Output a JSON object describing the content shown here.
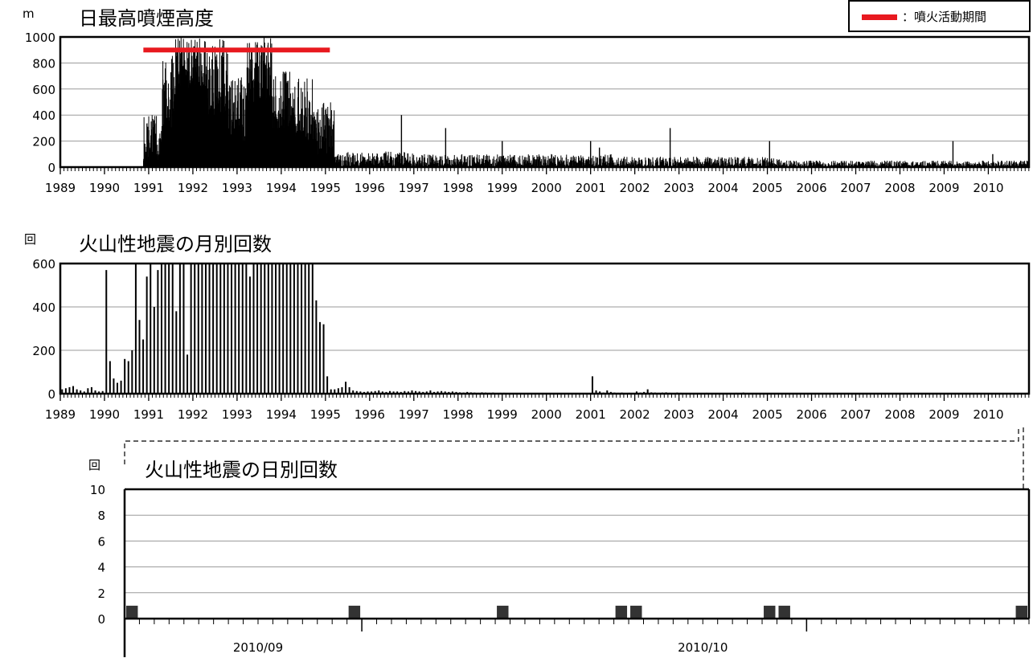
{
  "chart_data": [
    {
      "id": "plume",
      "type": "bar",
      "title": "日最高噴煙高度",
      "ylabel": "m",
      "ylim": [
        0,
        1000
      ],
      "yticks": [
        0,
        200,
        400,
        600,
        800,
        1000
      ],
      "xlim": [
        1989.0,
        2010.92
      ],
      "xticks": [
        "1989",
        "1990",
        "1991",
        "1992",
        "1993",
        "1994",
        "1995",
        "1996",
        "1997",
        "1998",
        "1999",
        "2000",
        "2001",
        "2002",
        "2003",
        "2004",
        "2005",
        "2006",
        "2007",
        "2008",
        "2009",
        "2010"
      ],
      "grid": true,
      "legend": {
        "placement": "top-right",
        "label": "：噴火活動期間",
        "color": "#e8191f"
      },
      "eruption_period": {
        "start": 1990.88,
        "end": 1995.1,
        "level": 900
      },
      "bar_color": "#000000",
      "segments": [
        {
          "start": 1990.88,
          "end": 1991.3,
          "min": 50,
          "max": 400
        },
        {
          "start": 1991.3,
          "end": 1991.6,
          "min": 300,
          "max": 900
        },
        {
          "start": 1991.6,
          "end": 1992.3,
          "min": 600,
          "max": 1000
        },
        {
          "start": 1992.3,
          "end": 1992.8,
          "min": 400,
          "max": 1000
        },
        {
          "start": 1992.8,
          "end": 1993.2,
          "min": 200,
          "max": 700
        },
        {
          "start": 1993.2,
          "end": 1993.8,
          "min": 500,
          "max": 1000
        },
        {
          "start": 1993.8,
          "end": 1994.3,
          "min": 300,
          "max": 800
        },
        {
          "start": 1994.3,
          "end": 1994.8,
          "min": 200,
          "max": 700
        },
        {
          "start": 1994.8,
          "end": 1995.2,
          "min": 100,
          "max": 500
        },
        {
          "start": 1995.2,
          "end": 1997.0,
          "min": 0,
          "max": 120
        },
        {
          "start": 1997.0,
          "end": 2001.5,
          "min": 0,
          "max": 100
        },
        {
          "start": 2001.5,
          "end": 2005.3,
          "min": 0,
          "max": 80
        },
        {
          "start": 2005.3,
          "end": 2010.9,
          "min": 0,
          "max": 50
        }
      ],
      "spikes": [
        {
          "x": 1996.72,
          "y": 400
        },
        {
          "x": 1997.72,
          "y": 300
        },
        {
          "x": 1999.0,
          "y": 200
        },
        {
          "x": 2001.0,
          "y": 200
        },
        {
          "x": 2001.2,
          "y": 150
        },
        {
          "x": 2002.8,
          "y": 300
        },
        {
          "x": 2005.05,
          "y": 200
        },
        {
          "x": 2009.2,
          "y": 200
        },
        {
          "x": 2010.1,
          "y": 100
        }
      ]
    },
    {
      "id": "monthly",
      "type": "bar",
      "title": "火山性地震の月別回数",
      "ylabel": "回",
      "ylim": [
        0,
        600
      ],
      "yticks": [
        0,
        200,
        400,
        600
      ],
      "xlim": [
        1989.0,
        2010.92
      ],
      "xticks": [
        "1989",
        "1990",
        "1991",
        "1992",
        "1993",
        "1994",
        "1995",
        "1996",
        "1997",
        "1998",
        "1999",
        "2000",
        "2001",
        "2002",
        "2003",
        "2004",
        "2005",
        "2006",
        "2007",
        "2008",
        "2009",
        "2010"
      ],
      "grid": true,
      "bar_color": "#000000",
      "start_year": 1989,
      "values": [
        20,
        25,
        30,
        35,
        20,
        15,
        10,
        25,
        30,
        15,
        10,
        12,
        570,
        150,
        70,
        50,
        60,
        160,
        150,
        200,
        600,
        340,
        250,
        540,
        600,
        400,
        570,
        600,
        600,
        600,
        600,
        380,
        600,
        600,
        180,
        600,
        600,
        600,
        600,
        600,
        600,
        600,
        600,
        600,
        600,
        600,
        600,
        600,
        600,
        600,
        600,
        540,
        600,
        600,
        600,
        600,
        600,
        600,
        600,
        600,
        600,
        600,
        600,
        600,
        600,
        600,
        600,
        600,
        600,
        430,
        330,
        320,
        80,
        20,
        20,
        25,
        30,
        55,
        30,
        15,
        12,
        10,
        8,
        10,
        10,
        12,
        15,
        10,
        8,
        12,
        10,
        10,
        8,
        12,
        10,
        15,
        12,
        10,
        8,
        10,
        15,
        8,
        10,
        12,
        10,
        8,
        10,
        8,
        6,
        5,
        8,
        6,
        5,
        4,
        6,
        5,
        4,
        5,
        3,
        4,
        4,
        3,
        3,
        2,
        3,
        2,
        3,
        2,
        3,
        2,
        2,
        3,
        2,
        2,
        3,
        2,
        2,
        3,
        2,
        2,
        2,
        3,
        2,
        2,
        80,
        15,
        10,
        5,
        15,
        8,
        5,
        4,
        5,
        3,
        4,
        3,
        10,
        5,
        8,
        20,
        6,
        5,
        4,
        5,
        6,
        4,
        3,
        5,
        4,
        3,
        3,
        2,
        3,
        2,
        3,
        4,
        3,
        2,
        3,
        2,
        3,
        2,
        3,
        4,
        3,
        5,
        3,
        2,
        3,
        2,
        2,
        3,
        2,
        2,
        3,
        2,
        2,
        2,
        3,
        2,
        2,
        2,
        2,
        2,
        2,
        2,
        2,
        3,
        2,
        2,
        2,
        2,
        2,
        2,
        2,
        2,
        2,
        2,
        2,
        2,
        3,
        2,
        2,
        2,
        2,
        2,
        2,
        2,
        2,
        2,
        2,
        2,
        2,
        2,
        2,
        2,
        3,
        2,
        2,
        2,
        2,
        2,
        2,
        2,
        2,
        2,
        2,
        2,
        2,
        2,
        2,
        2,
        2,
        2,
        2,
        2,
        2,
        2,
        2,
        2,
        2,
        2,
        4
      ]
    },
    {
      "id": "daily",
      "type": "bar",
      "title": "火山性地震の日別回数",
      "ylabel": "回",
      "ylim": [
        0,
        10
      ],
      "yticks": [
        0,
        2,
        4,
        6,
        8,
        10
      ],
      "grid": true,
      "bar_color": "#333333",
      "x_start": "2010-08-16",
      "x_end": "2010-10-15",
      "xticks": [
        {
          "date": "2010-09-01",
          "label": "2010/09"
        },
        {
          "date": "2010-10-01",
          "label": "2010/10"
        }
      ],
      "values": [
        {
          "date": "2010-08-16",
          "count": 1
        },
        {
          "date": "2010-08-31",
          "count": 1
        },
        {
          "date": "2010-09-10",
          "count": 1
        },
        {
          "date": "2010-09-18",
          "count": 1
        },
        {
          "date": "2010-09-19",
          "count": 1
        },
        {
          "date": "2010-09-28",
          "count": 1
        },
        {
          "date": "2010-09-29",
          "count": 1
        },
        {
          "date": "2010-10-15",
          "count": 1
        }
      ]
    }
  ]
}
